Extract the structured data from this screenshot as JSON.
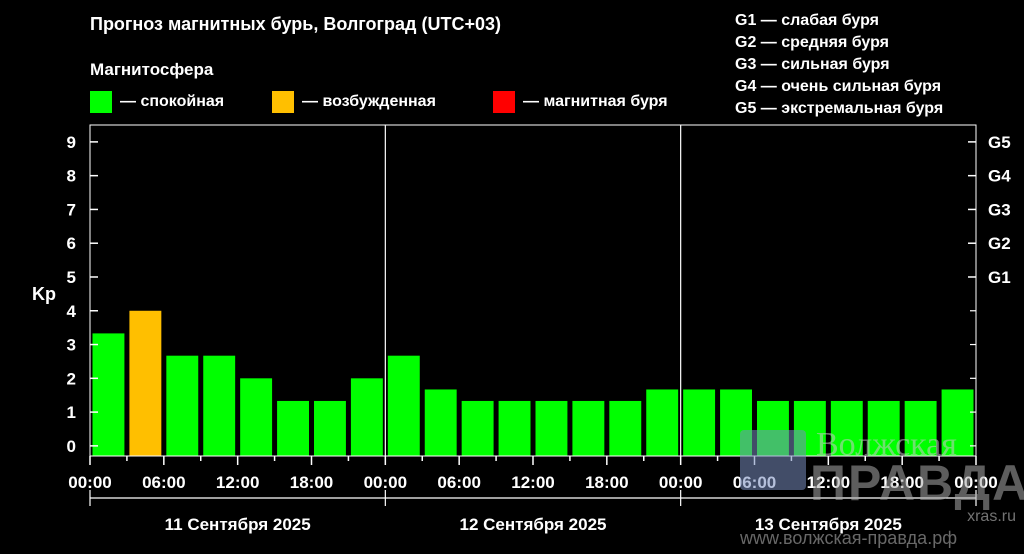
{
  "title": "Прогноз магнитных бурь, Волгоград (UTC+03)",
  "subtitle": "Магнитосфера",
  "legend": [
    {
      "label": "— спокойная",
      "color": "#00ff00"
    },
    {
      "label": "— возбужденная",
      "color": "#ffbf00"
    },
    {
      "label": "— магнитная буря",
      "color": "#ff0000"
    }
  ],
  "g_legend": [
    "G1 — слабая буря",
    "G2 — средняя буря",
    "G3 — сильная буря",
    "G4 — очень сильная буря",
    "G5 — экстремальная буря"
  ],
  "watermark": {
    "name_line1": "Волжская",
    "name_line2": "ПРАВДА",
    "url1": "xras.ru",
    "url2": "www.волжская-правда.рф"
  },
  "chart_data": {
    "type": "bar",
    "ylabel": "Kp",
    "ylim": [
      -0.3,
      9.5
    ],
    "yticks": [
      0,
      1,
      2,
      3,
      4,
      5,
      6,
      7,
      8,
      9
    ],
    "right_ticks": [
      {
        "value": 5,
        "label": "G1"
      },
      {
        "value": 6,
        "label": "G2"
      },
      {
        "value": 7,
        "label": "G3"
      },
      {
        "value": 8,
        "label": "G4"
      },
      {
        "value": 9,
        "label": "G5"
      }
    ],
    "x_tick_labels": [
      "00:00",
      "06:00",
      "12:00",
      "18:00",
      "00:00",
      "06:00",
      "12:00",
      "18:00",
      "00:00",
      "06:00",
      "12:00",
      "18:00",
      "00:00"
    ],
    "days": [
      "11 Сентября 2025",
      "12 Сентября 2025",
      "13 Сентября 2025"
    ],
    "grid": false,
    "values": [
      3.33,
      4.0,
      2.67,
      2.67,
      2.0,
      1.33,
      1.33,
      2.0,
      2.67,
      1.67,
      1.33,
      1.33,
      1.33,
      1.33,
      1.33,
      1.67,
      1.67,
      1.67,
      1.33,
      1.33,
      1.33,
      1.33,
      1.33,
      1.67
    ],
    "colors": [
      "#00ff00",
      "#ffbf00",
      "#00ff00",
      "#00ff00",
      "#00ff00",
      "#00ff00",
      "#00ff00",
      "#00ff00",
      "#00ff00",
      "#00ff00",
      "#00ff00",
      "#00ff00",
      "#00ff00",
      "#00ff00",
      "#00ff00",
      "#00ff00",
      "#00ff00",
      "#00ff00",
      "#00ff00",
      "#00ff00",
      "#00ff00",
      "#00ff00",
      "#00ff00",
      "#00ff00"
    ]
  }
}
